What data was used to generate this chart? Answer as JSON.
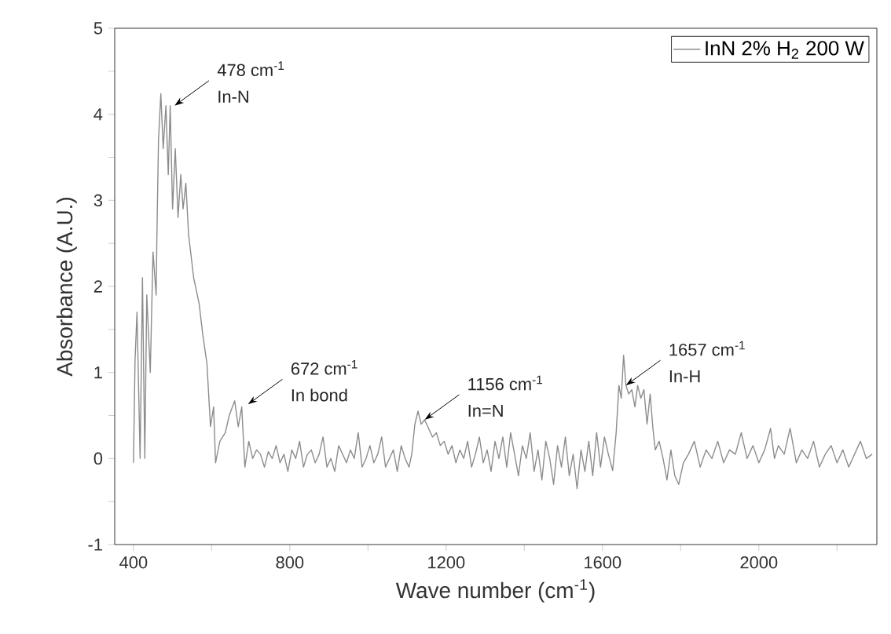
{
  "chart_data": {
    "type": "line",
    "xlabel": "Wave number (cm$^{-1}$)",
    "ylabel": "Absorbance (A.U.)",
    "xlim": [
      352,
      2302
    ],
    "ylim": [
      -1,
      5
    ],
    "xticks": [
      400,
      {
        "value": 600,
        "label": null
      },
      800,
      {
        "value": 1000,
        "label": null
      },
      1200,
      {
        "value": 1400,
        "label": null
      },
      1600,
      {
        "value": 1800,
        "label": null
      },
      2000,
      {
        "value": 2200,
        "label": null
      }
    ],
    "yticks": [
      -1,
      {
        "value": -0.5,
        "label": null
      },
      0,
      {
        "value": 0.5,
        "label": null
      },
      1,
      {
        "value": 1.5,
        "label": null
      },
      2,
      {
        "value": 2.5,
        "label": null
      },
      3,
      {
        "value": 3.5,
        "label": null
      },
      4,
      {
        "value": 4.5,
        "label": null
      },
      5
    ],
    "legend": "top right",
    "grid": false,
    "marker": "none",
    "line_style": "solid",
    "series": [
      {
        "name": "InN 2% H$_{2}$ 200 W",
        "color": "#8c8c8c",
        "x": [
          400,
          404,
          409,
          417,
          423,
          429,
          434,
          443,
          450,
          458,
          460,
          464,
          470,
          476,
          483,
          489,
          494,
          500,
          507,
          514,
          521,
          527,
          534,
          541,
          554,
          568,
          577,
          588,
          597,
          605,
          610,
          621,
          635,
          645,
          659,
          668,
          677,
          685,
          695,
          705,
          715,
          725,
          735,
          745,
          755,
          765,
          775,
          785,
          795,
          805,
          815,
          825,
          835,
          845,
          855,
          865,
          875,
          885,
          895,
          905,
          915,
          925,
          935,
          945,
          955,
          965,
          975,
          985,
          995,
          1005,
          1015,
          1025,
          1035,
          1045,
          1055,
          1065,
          1075,
          1085,
          1095,
          1105,
          1112,
          1120,
          1128,
          1136,
          1145,
          1155,
          1165,
          1175,
          1185,
          1195,
          1205,
          1215,
          1225,
          1235,
          1245,
          1255,
          1265,
          1275,
          1285,
          1295,
          1305,
          1315,
          1325,
          1335,
          1345,
          1355,
          1365,
          1375,
          1385,
          1395,
          1405,
          1415,
          1425,
          1435,
          1445,
          1455,
          1465,
          1475,
          1485,
          1495,
          1505,
          1515,
          1525,
          1535,
          1545,
          1555,
          1565,
          1575,
          1585,
          1595,
          1605,
          1615,
          1626,
          1635,
          1642,
          1648,
          1654,
          1660,
          1667,
          1675,
          1683,
          1690,
          1698,
          1706,
          1714,
          1722,
          1729,
          1735,
          1745,
          1755,
          1765,
          1775,
          1785,
          1795,
          1807,
          1820,
          1835,
          1850,
          1865,
          1880,
          1895,
          1910,
          1925,
          1940,
          1955,
          1970,
          1985,
          2000,
          2015,
          2030,
          2040,
          2050,
          2065,
          2080,
          2096,
          2110,
          2125,
          2140,
          2155,
          2170,
          2185,
          2200,
          2215,
          2230,
          2245,
          2260,
          2275,
          2290
        ],
        "values": [
          -0.05,
          1.14,
          1.7,
          0.0,
          2.1,
          0.0,
          1.9,
          1.0,
          2.4,
          1.9,
          2.6,
          3.7,
          4.24,
          3.6,
          4.1,
          3.3,
          4.1,
          2.9,
          3.6,
          2.8,
          3.3,
          2.9,
          3.2,
          2.6,
          2.1,
          1.8,
          1.45,
          1.1,
          0.37,
          0.6,
          -0.05,
          0.2,
          0.3,
          0.5,
          0.67,
          0.37,
          0.6,
          -0.1,
          0.2,
          0.0,
          0.1,
          0.05,
          -0.1,
          0.08,
          0.0,
          0.15,
          -0.05,
          0.05,
          -0.15,
          0.1,
          0.0,
          0.2,
          -0.1,
          0.05,
          0.1,
          -0.05,
          0.05,
          0.25,
          -0.1,
          0.0,
          -0.15,
          0.15,
          0.05,
          -0.05,
          0.1,
          0.0,
          0.3,
          -0.1,
          0.0,
          0.15,
          -0.05,
          0.05,
          0.25,
          -0.1,
          0.0,
          0.1,
          -0.15,
          0.15,
          0.0,
          -0.1,
          0.05,
          0.4,
          0.55,
          0.4,
          0.45,
          0.35,
          0.25,
          0.3,
          0.15,
          0.2,
          0.05,
          0.15,
          -0.05,
          0.1,
          0.0,
          0.2,
          -0.1,
          0.05,
          0.25,
          -0.05,
          0.1,
          -0.15,
          0.2,
          0.0,
          0.25,
          -0.1,
          0.3,
          0.05,
          -0.2,
          0.15,
          0.0,
          0.3,
          -0.15,
          0.1,
          -0.25,
          0.2,
          0.0,
          -0.3,
          0.15,
          -0.1,
          0.25,
          -0.2,
          0.05,
          -0.35,
          0.1,
          -0.15,
          0.2,
          -0.2,
          0.3,
          -0.1,
          0.25,
          0.05,
          -0.14,
          0.3,
          0.85,
          0.7,
          1.2,
          0.85,
          0.75,
          0.8,
          0.6,
          0.85,
          0.7,
          0.8,
          0.4,
          0.75,
          0.35,
          0.1,
          0.2,
          0.0,
          -0.25,
          0.1,
          -0.2,
          -0.3,
          -0.05,
          0.05,
          0.2,
          -0.1,
          0.1,
          0.0,
          0.2,
          -0.05,
          0.1,
          0.05,
          0.3,
          0.0,
          0.15,
          -0.05,
          0.1,
          0.35,
          0.0,
          0.15,
          0.05,
          0.35,
          -0.05,
          0.1,
          0.0,
          0.2,
          -0.1,
          0.05,
          0.15,
          -0.05,
          0.1,
          -0.1,
          0.05,
          0.2,
          0.0,
          0.05
        ]
      }
    ],
    "annotations": [
      {
        "text": "478 cm$^{-1}$",
        "x": 505,
        "y": 4.1
      },
      {
        "text": "In-N",
        "x": 505,
        "y": 4.1
      },
      {
        "text": "672 cm$^{-1}$",
        "x": 693,
        "y": 0.63
      },
      {
        "text": "In bond",
        "x": 693,
        "y": 0.63
      },
      {
        "text": "1156 cm$^{-1}$",
        "x": 1145,
        "y": 0.45
      },
      {
        "text": "In=N",
        "x": 1145,
        "y": 0.45
      },
      {
        "text": "1657 cm$^{-1}$",
        "x": 1660,
        "y": 0.85
      },
      {
        "text": "In-H",
        "x": 1660,
        "y": 0.85
      }
    ]
  }
}
